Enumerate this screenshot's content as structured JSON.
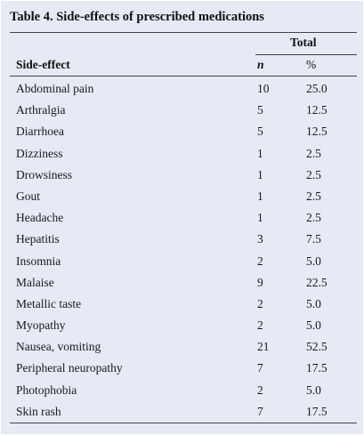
{
  "table": {
    "caption": "Table 4. Side-effects of prescribed medications",
    "group_header": "Total",
    "columns": {
      "side_effect": "Side-effect",
      "n": "n",
      "pct": "%"
    },
    "rows": [
      {
        "side_effect": "Abdominal pain",
        "n": "10",
        "pct": "25.0"
      },
      {
        "side_effect": "Arthralgia",
        "n": "5",
        "pct": "12.5"
      },
      {
        "side_effect": "Diarrhoea",
        "n": "5",
        "pct": "12.5"
      },
      {
        "side_effect": "Dizziness",
        "n": "1",
        "pct": "2.5"
      },
      {
        "side_effect": "Drowsiness",
        "n": "1",
        "pct": "2.5"
      },
      {
        "side_effect": "Gout",
        "n": "1",
        "pct": "2.5"
      },
      {
        "side_effect": "Headache",
        "n": "1",
        "pct": "2.5"
      },
      {
        "side_effect": "Hepatitis",
        "n": "3",
        "pct": "7.5"
      },
      {
        "side_effect": "Insomnia",
        "n": "2",
        "pct": "5.0"
      },
      {
        "side_effect": "Malaise",
        "n": "9",
        "pct": "22.5"
      },
      {
        "side_effect": "Metallic taste",
        "n": "2",
        "pct": "5.0"
      },
      {
        "side_effect": "Myopathy",
        "n": "2",
        "pct": "5.0"
      },
      {
        "side_effect": "Nausea, vomiting",
        "n": "21",
        "pct": "52.5"
      },
      {
        "side_effect": "Peripheral neuropathy",
        "n": "7",
        "pct": "17.5"
      },
      {
        "side_effect": "Photophobia",
        "n": "2",
        "pct": "5.0"
      },
      {
        "side_effect": "Skin rash",
        "n": "7",
        "pct": "17.5"
      }
    ]
  }
}
